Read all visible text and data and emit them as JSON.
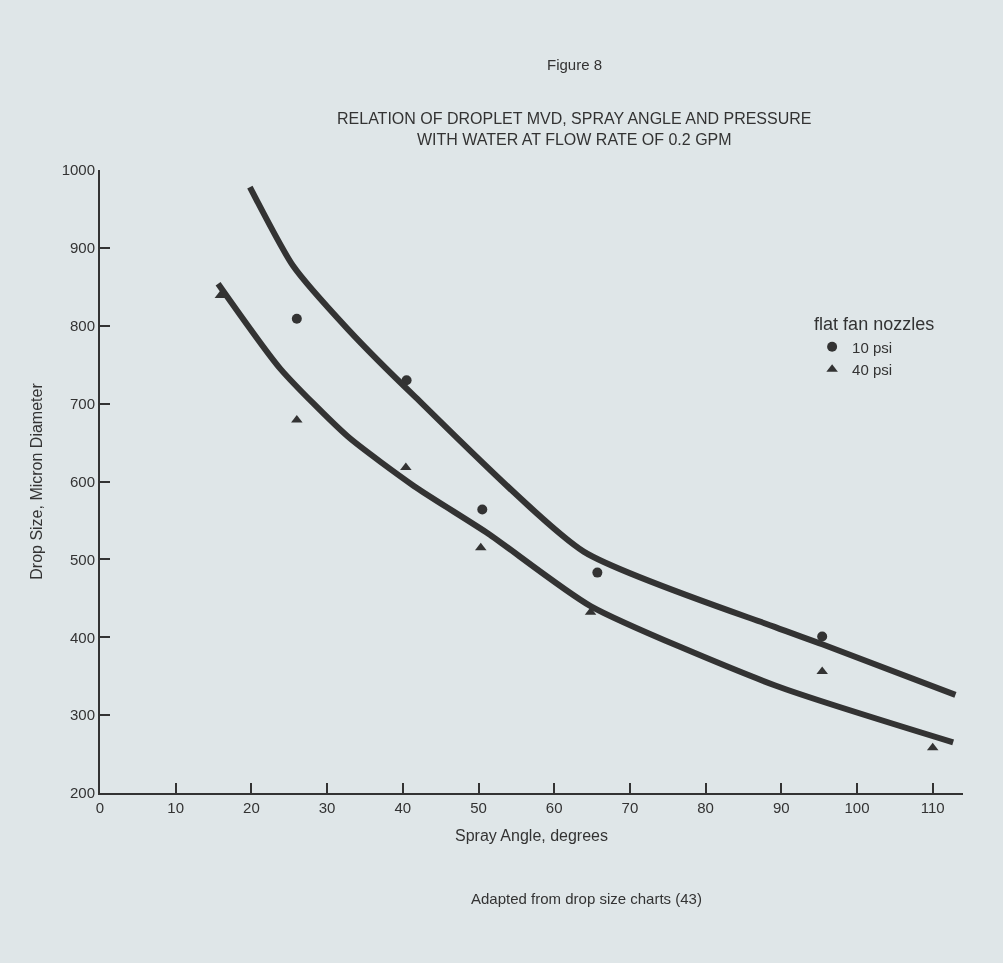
{
  "chart_data": {
    "type": "scatter",
    "title": "Figure 8",
    "subtitle": "RELATION OF DROPLET MVD, SPRAY ANGLE AND PRESSURE\nWITH WATER AT FLOW RATE OF 0.2 GPM",
    "xlabel": "Spray Angle, degrees",
    "ylabel": "Drop Size, Micron Diameter",
    "legend_title": "flat fan nozzles",
    "series": [
      {
        "name": "10 psi",
        "color": "#333333",
        "marker": "circle",
        "x": [
          26,
          40.5,
          50.5,
          65.7,
          95.4
        ],
        "values": [
          809,
          730,
          564,
          483,
          401
        ]
      },
      {
        "name": "40 psi",
        "color": "#333333",
        "marker": "triangle",
        "x": [
          15.9,
          26,
          40.4,
          50.3,
          64.8,
          95.4,
          110
        ],
        "values": [
          839,
          679,
          618,
          515,
          432,
          356,
          258
        ]
      },
      {
        "color": "#333333",
        "type": "line",
        "x": [
          19.8,
          25.5,
          32.7,
          41.5,
          63.9,
          89.2,
          95.4,
          113
        ],
        "values": [
          978,
          877,
          796,
          710,
          510,
          413,
          391,
          326
        ]
      },
      {
        "color": "#333333",
        "type": "line",
        "x": [
          15.6,
          23.8,
          32.7,
          41.5,
          51.3,
          64.8,
          89.2,
          112.7
        ],
        "values": [
          854,
          745,
          658,
          594,
          533,
          440,
          338,
          265
        ]
      }
    ],
    "xlim": [
      0,
      114
    ],
    "xticks": [
      0,
      10,
      20,
      30,
      40,
      50,
      60,
      70,
      80,
      90,
      100,
      110
    ],
    "ylim": [
      200,
      1000
    ],
    "yticks": [
      200,
      300,
      400,
      500,
      600,
      700,
      800,
      900,
      1000
    ],
    "grid": false,
    "legend": "top right",
    "annotations": [
      "Adapted from drop size charts (43)"
    ]
  }
}
